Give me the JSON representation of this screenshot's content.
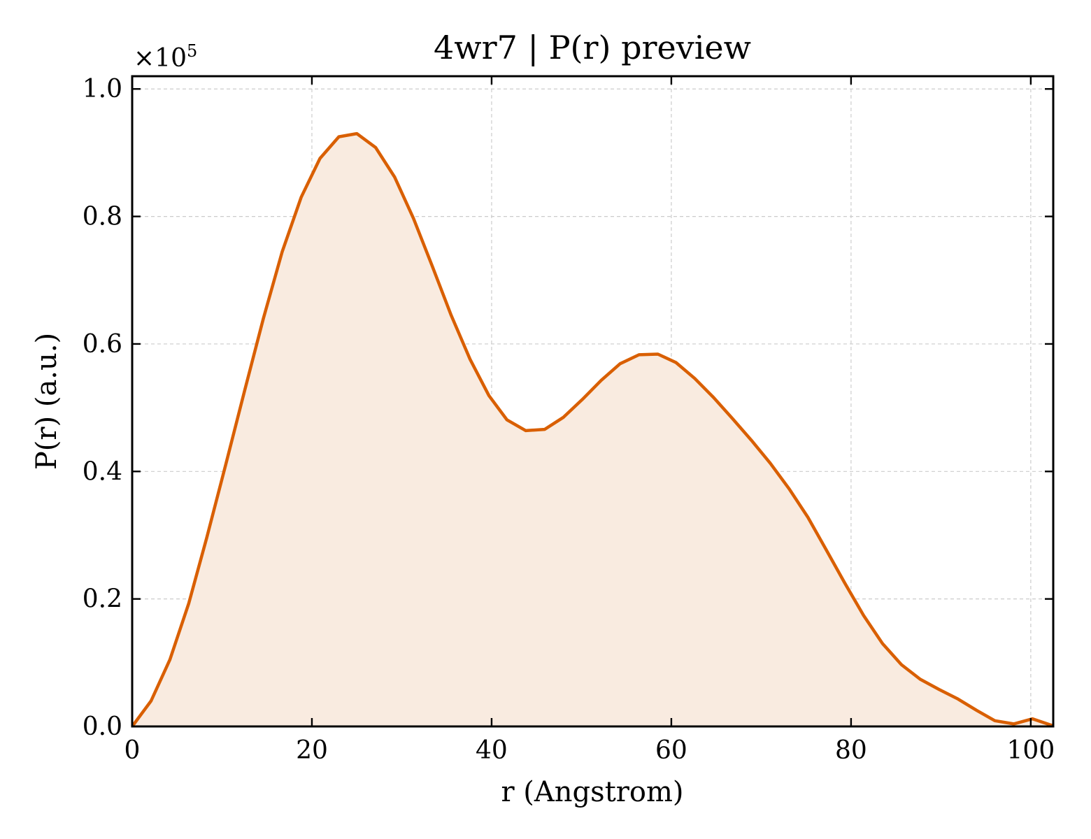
{
  "chart_data": {
    "type": "area",
    "title": "4wr7 | P(r) preview",
    "xlabel": "r (Angstrom)",
    "ylabel": "P(r) (a.u.)",
    "y_multiplier_text": "×10",
    "y_multiplier_exp": "5",
    "xlim": [
      0,
      102.5
    ],
    "ylim": [
      0,
      1.02
    ],
    "xticks": [
      0,
      20,
      40,
      60,
      80,
      100
    ],
    "xtick_labels": [
      "0",
      "20",
      "40",
      "60",
      "80",
      "100"
    ],
    "yticks": [
      0,
      0.2,
      0.4,
      0.6,
      0.8,
      1.0
    ],
    "ytick_labels": [
      "0.0",
      "0.2",
      "0.4",
      "0.6",
      "0.8",
      "1.0"
    ],
    "grid": true,
    "line_color": "#d95f02",
    "fill_color": "#f9ebe0",
    "series": [
      {
        "x": [
          0,
          2.1,
          4.2,
          6.3,
          8.3,
          10.4,
          12.5,
          14.6,
          16.7,
          18.8,
          20.9,
          23.0,
          25.0,
          27.1,
          29.2,
          31.3,
          33.4,
          35.5,
          37.6,
          39.7,
          41.7,
          43.8,
          45.9,
          48.0,
          50.1,
          52.2,
          54.3,
          56.4,
          58.5,
          60.5,
          62.6,
          64.7,
          66.8,
          68.9,
          71.0,
          73.1,
          75.2,
          77.2,
          79.3,
          81.4,
          83.5,
          85.6,
          87.7,
          89.8,
          91.9,
          94.0,
          96.0,
          98.1,
          100.2,
          102.5
        ],
        "values": [
          0.0,
          0.04,
          0.105,
          0.193,
          0.296,
          0.41,
          0.526,
          0.64,
          0.745,
          0.83,
          0.891,
          0.925,
          0.93,
          0.908,
          0.862,
          0.797,
          0.722,
          0.645,
          0.576,
          0.519,
          0.481,
          0.464,
          0.466,
          0.485,
          0.513,
          0.543,
          0.569,
          0.583,
          0.584,
          0.571,
          0.546,
          0.516,
          0.483,
          0.449,
          0.413,
          0.373,
          0.328,
          0.278,
          0.225,
          0.174,
          0.13,
          0.097,
          0.074,
          0.058,
          0.043,
          0.025,
          0.009,
          0.004,
          0.012,
          0.001
        ]
      }
    ]
  }
}
